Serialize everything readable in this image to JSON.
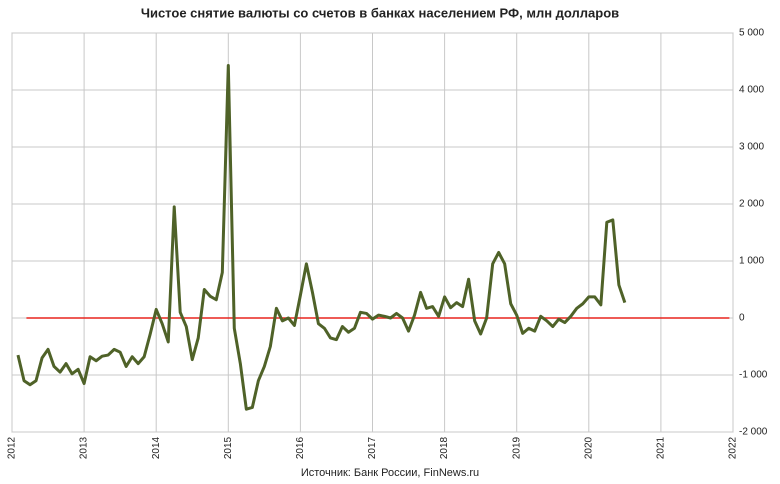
{
  "chart_data": {
    "type": "line",
    "title": "Чистое снятие валюты со счетов в банках населением РФ, млн долларов",
    "source": "Источник: Банк России, FinNews.ru",
    "xlim": [
      2012,
      2022
    ],
    "xticks": [
      2012,
      2013,
      2014,
      2015,
      2016,
      2017,
      2018,
      2019,
      2020,
      2021,
      2022
    ],
    "ylim": [
      -2000,
      5000
    ],
    "yticks": [
      {
        "value": -2000,
        "label": "-2 000"
      },
      {
        "value": -1000,
        "label": "-1 000"
      },
      0,
      {
        "value": 1000,
        "label": "1 000"
      },
      {
        "value": 2000,
        "label": "2 000"
      },
      {
        "value": 3000,
        "label": "3 000"
      },
      {
        "value": 4000,
        "label": "4 000"
      },
      {
        "value": 5000,
        "label": "5 000"
      }
    ],
    "grid": true,
    "reference_line": {
      "value": 0,
      "color": "#e8251f",
      "x": [
        2012.2,
        2021.95
      ]
    },
    "series": [
      {
        "color": "#4f6228",
        "x": [
          2012.083,
          2012.167,
          2012.25,
          2012.333,
          2012.417,
          2012.5,
          2012.583,
          2012.667,
          2012.75,
          2012.833,
          2012.917,
          2013.0,
          2013.083,
          2013.167,
          2013.25,
          2013.333,
          2013.417,
          2013.5,
          2013.583,
          2013.667,
          2013.75,
          2013.833,
          2013.917,
          2014.0,
          2014.083,
          2014.167,
          2014.25,
          2014.333,
          2014.417,
          2014.5,
          2014.583,
          2014.667,
          2014.75,
          2014.833,
          2014.917,
          2015.0,
          2015.083,
          2015.167,
          2015.25,
          2015.333,
          2015.417,
          2015.5,
          2015.583,
          2015.667,
          2015.75,
          2015.833,
          2015.917,
          2016.0,
          2016.083,
          2016.167,
          2016.25,
          2016.333,
          2016.417,
          2016.5,
          2016.583,
          2016.667,
          2016.75,
          2016.833,
          2016.917,
          2017.0,
          2017.083,
          2017.167,
          2017.25,
          2017.333,
          2017.417,
          2017.5,
          2017.583,
          2017.667,
          2017.75,
          2017.833,
          2017.917,
          2018.0,
          2018.083,
          2018.167,
          2018.25,
          2018.333,
          2018.417,
          2018.5,
          2018.583,
          2018.667,
          2018.75,
          2018.833,
          2018.917,
          2019.0,
          2019.083,
          2019.167,
          2019.25,
          2019.333,
          2019.417,
          2019.5,
          2019.583,
          2019.667,
          2019.75,
          2019.833,
          2019.917,
          2020.0,
          2020.083,
          2020.167,
          2020.25,
          2020.333,
          2020.417,
          2020.5
        ],
        "values": [
          -650,
          -1100,
          -1170,
          -1100,
          -700,
          -550,
          -850,
          -950,
          -800,
          -980,
          -900,
          -1150,
          -680,
          -750,
          -670,
          -650,
          -550,
          -600,
          -850,
          -680,
          -800,
          -680,
          -280,
          150,
          -100,
          -420,
          1950,
          100,
          -150,
          -730,
          -350,
          500,
          380,
          320,
          800,
          4430,
          -180,
          -800,
          -1600,
          -1570,
          -1100,
          -850,
          -500,
          170,
          -50,
          0,
          -130,
          400,
          950,
          450,
          -100,
          -180,
          -350,
          -380,
          -150,
          -250,
          -180,
          100,
          80,
          -20,
          50,
          30,
          0,
          80,
          0,
          -230,
          50,
          450,
          170,
          200,
          30,
          370,
          180,
          270,
          200,
          680,
          -50,
          -280,
          0,
          950,
          1150,
          950,
          250,
          50,
          -270,
          -180,
          -230,
          30,
          -50,
          -150,
          -20,
          -80,
          30,
          170,
          250,
          370,
          370,
          230,
          1680,
          1720,
          580,
          270
        ]
      }
    ]
  }
}
